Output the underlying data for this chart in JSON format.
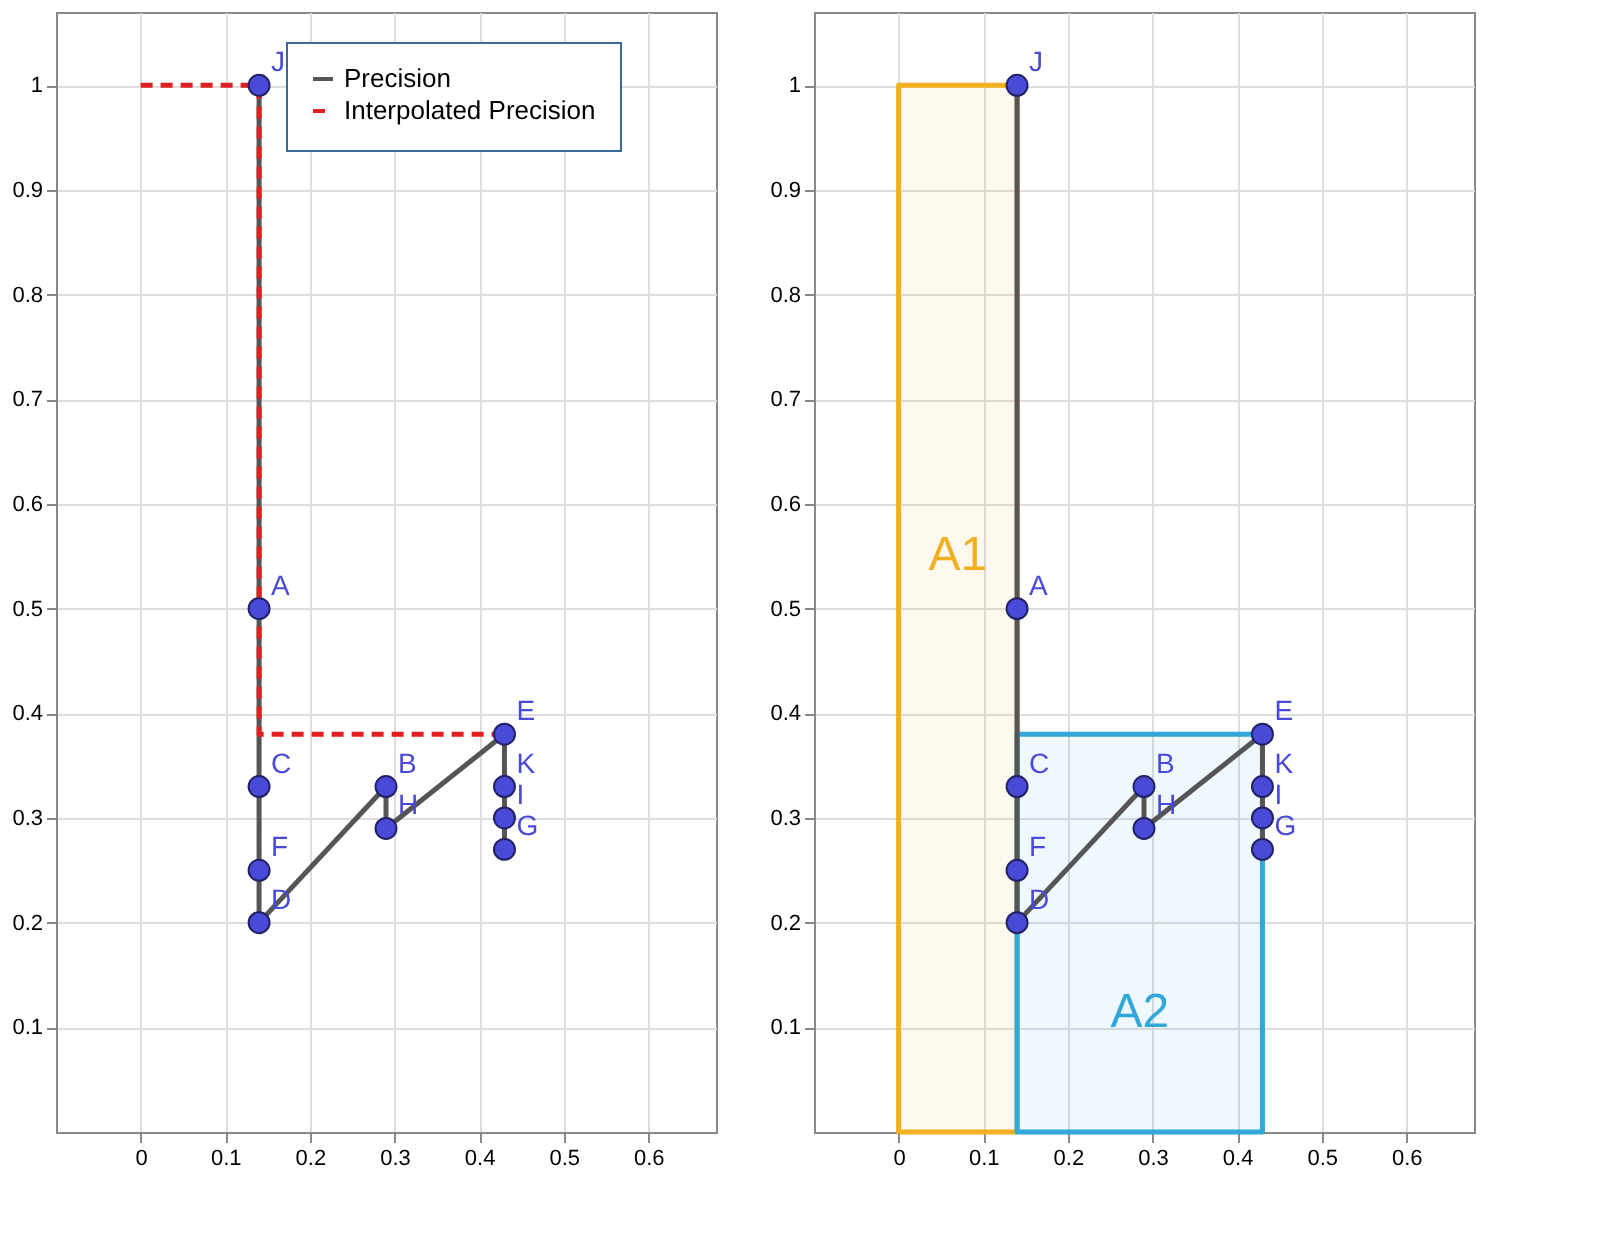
{
  "chart_data": [
    {
      "type": "line",
      "xlim": [
        -0.1,
        0.68
      ],
      "ylim": [
        0,
        1.07
      ],
      "xticks": [
        0,
        0.1,
        0.2,
        0.3,
        0.4,
        0.5,
        0.6
      ],
      "yticks": [
        0.1,
        0.2,
        0.3,
        0.4,
        0.5,
        0.6,
        0.7,
        0.8,
        0.9,
        1
      ],
      "grid": true,
      "legend": "top right",
      "series": [
        {
          "name": "Precision",
          "color": "#555555",
          "line_style": "solid",
          "x": [
            0.14,
            0.14,
            0.29,
            0.29,
            0.43,
            0.43
          ],
          "values": [
            1,
            0.2,
            0.33,
            0.29,
            0.38,
            0.27
          ]
        },
        {
          "name": "Interpolated Precision",
          "color": "#e02020",
          "line_style": "dashed",
          "x": [
            0,
            0.14,
            0.14,
            0.43
          ],
          "values": [
            1,
            1,
            0.38,
            0.38
          ]
        },
        {
          "type": "scatter",
          "color": "#4a4ad8",
          "marker": "circle",
          "x": [
            0.14,
            0.14,
            0.14,
            0.14,
            0.14,
            0.29,
            0.29,
            0.43,
            0.43,
            0.43,
            0.43
          ],
          "values": [
            1,
            0.5,
            0.33,
            0.25,
            0.2,
            0.33,
            0.29,
            0.38,
            0.33,
            0.3,
            0.27
          ]
        }
      ],
      "annotations": [
        {
          "text": "J",
          "x": 0.14,
          "y": 1
        },
        {
          "text": "A",
          "x": 0.14,
          "y": 0.5
        },
        {
          "text": "C",
          "x": 0.14,
          "y": 0.33
        },
        {
          "text": "F",
          "x": 0.14,
          "y": 0.25
        },
        {
          "text": "D",
          "x": 0.14,
          "y": 0.2
        },
        {
          "text": "B",
          "x": 0.29,
          "y": 0.33
        },
        {
          "text": "H",
          "x": 0.29,
          "y": 0.29
        },
        {
          "text": "E",
          "x": 0.43,
          "y": 0.38
        },
        {
          "text": "K",
          "x": 0.43,
          "y": 0.33
        },
        {
          "text": "I",
          "x": 0.43,
          "y": 0.3
        },
        {
          "text": "G",
          "x": 0.43,
          "y": 0.27
        }
      ]
    },
    {
      "type": "line",
      "xlim": [
        -0.1,
        0.68
      ],
      "ylim": [
        0,
        1.07
      ],
      "xticks": [
        0,
        0.1,
        0.2,
        0.3,
        0.4,
        0.5,
        0.6
      ],
      "yticks": [
        0.1,
        0.2,
        0.3,
        0.4,
        0.5,
        0.6,
        0.7,
        0.8,
        0.9,
        1
      ],
      "grid": true,
      "series": [
        {
          "type": "area",
          "color": "#f0b020",
          "x": [
            0,
            0.14
          ],
          "values": [
            1,
            1
          ]
        },
        {
          "type": "area",
          "color": "#30a8d8",
          "x": [
            0.14,
            0.43
          ],
          "values": [
            0.38,
            0.38
          ]
        },
        {
          "color": "#555555",
          "line_style": "solid",
          "x": [
            0.14,
            0.14,
            0.29,
            0.29,
            0.43,
            0.43
          ],
          "values": [
            1,
            0.2,
            0.33,
            0.29,
            0.38,
            0.27
          ]
        },
        {
          "type": "scatter",
          "color": "#4a4ad8",
          "marker": "circle",
          "x": [
            0.14,
            0.14,
            0.14,
            0.14,
            0.14,
            0.29,
            0.29,
            0.43,
            0.43,
            0.43,
            0.43
          ],
          "values": [
            1,
            0.5,
            0.33,
            0.25,
            0.2,
            0.33,
            0.29,
            0.38,
            0.33,
            0.3,
            0.27
          ]
        }
      ],
      "annotations": [
        {
          "text": "J",
          "x": 0.14,
          "y": 1
        },
        {
          "text": "A",
          "x": 0.14,
          "y": 0.5
        },
        {
          "text": "C",
          "x": 0.14,
          "y": 0.33
        },
        {
          "text": "F",
          "x": 0.14,
          "y": 0.25
        },
        {
          "text": "D",
          "x": 0.14,
          "y": 0.2
        },
        {
          "text": "B",
          "x": 0.29,
          "y": 0.33
        },
        {
          "text": "H",
          "x": 0.29,
          "y": 0.29
        },
        {
          "text": "E",
          "x": 0.43,
          "y": 0.38
        },
        {
          "text": "K",
          "x": 0.43,
          "y": 0.33
        },
        {
          "text": "I",
          "x": 0.43,
          "y": 0.3
        },
        {
          "text": "G",
          "x": 0.43,
          "y": 0.27
        },
        "A1",
        "A2"
      ]
    }
  ]
}
